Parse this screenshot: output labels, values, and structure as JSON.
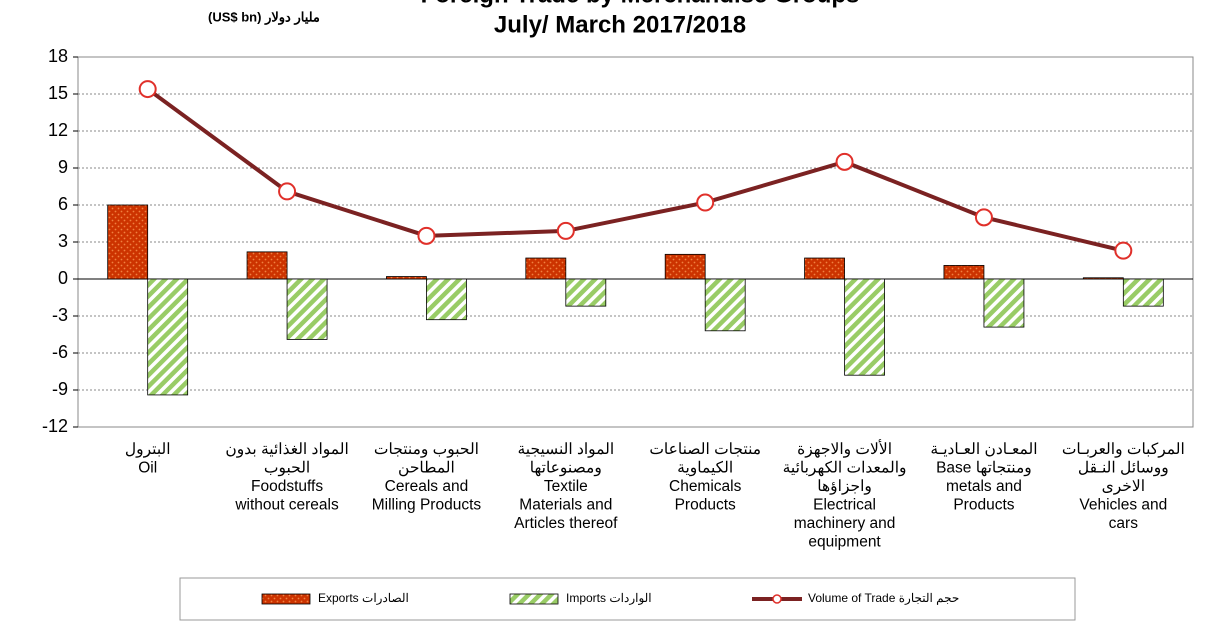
{
  "chart_data": {
    "type": "bar",
    "title": "Foreign Trade by Merchandise Groups",
    "subtitle": "July/ March 2017/2018",
    "y_label": "مليار دولار (US$ bn)",
    "categories": [
      [
        "البترول",
        "Oil"
      ],
      [
        "المواد الغذائية بدون",
        "الحبوب",
        "Foodstuffs",
        "without cereals"
      ],
      [
        "الحبوب ومنتجات",
        "المطاحن",
        "Cereals and",
        "Milling Products"
      ],
      [
        "المواد النسيجية",
        "ومصنوعاتها",
        "Textile",
        "Materials and",
        "Articles thereof"
      ],
      [
        "منتجات الصناعات",
        "الكيماوية",
        "Chemicals",
        "Products"
      ],
      [
        "الألات والاجهزة",
        "والمعدات الكهربائية",
        "واجزاؤها",
        "Electrical",
        "machinery and",
        "equipment"
      ],
      [
        "المعـادن العـاديـة",
        "Base ومنتجاتها",
        "metals and",
        "Products"
      ],
      [
        "المركبات والعربـات",
        "ووسائل النـقل",
        "الاخرى",
        "Vehicles and",
        "cars"
      ]
    ],
    "series": [
      {
        "name": "Exports الصادرات",
        "type": "bar",
        "color": "#cc3300",
        "values": [
          6.0,
          2.2,
          0.2,
          1.7,
          2.0,
          1.7,
          1.1,
          0.1
        ]
      },
      {
        "name": "Imports الواردات",
        "type": "bar",
        "color": "#99cc66",
        "values": [
          -9.4,
          -4.9,
          -3.3,
          -2.2,
          -4.2,
          -7.8,
          -3.9,
          -2.2
        ]
      },
      {
        "name": "Volume of Trade حجم التجارة",
        "type": "line",
        "color": "#7b2222",
        "values": [
          15.4,
          7.1,
          3.5,
          3.9,
          6.2,
          9.5,
          5.0,
          2.3
        ]
      }
    ],
    "ylim": [
      -12,
      18
    ],
    "yticks": [
      -12,
      -9,
      -6,
      -3,
      0,
      3,
      6,
      9,
      12,
      15,
      18
    ],
    "grid": true,
    "legend": "bottom"
  }
}
